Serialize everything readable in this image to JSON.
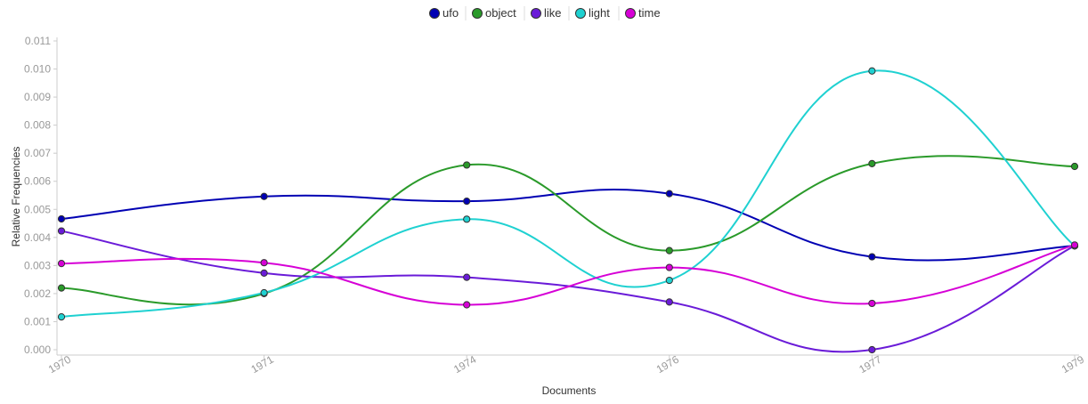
{
  "chart_data": {
    "type": "line",
    "xlabel": "Documents",
    "ylabel": "Relative Frequencies",
    "categories": [
      "1970",
      "1971",
      "1974",
      "1976",
      "1977",
      "1979"
    ],
    "ylim": [
      0,
      0.011
    ],
    "yticks": [
      "0.000",
      "0.001",
      "0.002",
      "0.003",
      "0.004",
      "0.005",
      "0.006",
      "0.007",
      "0.008",
      "0.009",
      "0.010",
      "0.011"
    ],
    "grid": false,
    "legend_position": "top",
    "curve": "smooth",
    "series": [
      {
        "name": "ufo",
        "color": "#0000b3",
        "values": [
          0.00466,
          0.00546,
          0.00529,
          0.00556,
          0.00331,
          0.0037
        ]
      },
      {
        "name": "object",
        "color": "#2a9a2a",
        "values": [
          0.0022,
          0.002,
          0.00658,
          0.00353,
          0.00663,
          0.00653
        ]
      },
      {
        "name": "like",
        "color": "#6a1bd8",
        "values": [
          0.00423,
          0.00273,
          0.00258,
          0.0017,
          0.0,
          0.0037
        ]
      },
      {
        "name": "light",
        "color": "#1fd1d1",
        "values": [
          0.00117,
          0.00203,
          0.00465,
          0.00247,
          0.00993,
          0.0037
        ]
      },
      {
        "name": "time",
        "color": "#d600d6",
        "values": [
          0.00307,
          0.0031,
          0.0016,
          0.00293,
          0.00165,
          0.00373
        ]
      }
    ]
  }
}
